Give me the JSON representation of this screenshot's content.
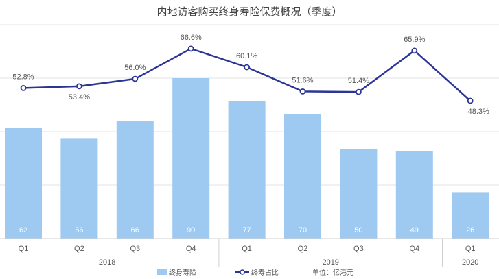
{
  "chart_data": {
    "type": "bar+line",
    "title": "内地访客购买终身寿险保费概况（季度）",
    "categories": [
      "Q1",
      "Q2",
      "Q3",
      "Q4",
      "Q1",
      "Q2",
      "Q3",
      "Q4",
      "Q1"
    ],
    "groups": [
      {
        "label": "2018",
        "span": 4
      },
      {
        "label": "2019",
        "span": 4
      },
      {
        "label": "2020",
        "span": 1
      }
    ],
    "series": [
      {
        "name": "终身寿险",
        "type": "bar",
        "color": "#9ec9f1",
        "values": [
          62,
          56,
          66,
          90,
          77,
          70,
          50,
          49,
          26
        ],
        "labels": [
          "62",
          "56",
          "66",
          "90",
          "77",
          "70",
          "50",
          "49",
          "26"
        ]
      },
      {
        "name": "终寿占比",
        "type": "line",
        "color": "#2b3594",
        "axis": "secondary",
        "values": [
          52.8,
          53.4,
          56.0,
          66.6,
          60.1,
          51.6,
          51.4,
          65.9,
          48.3
        ],
        "labels": [
          "52.8%",
          "53.4%",
          "56.0%",
          "66.6%",
          "60.1%",
          "51.6%",
          "51.4%",
          "65.9%",
          "48.3%"
        ]
      }
    ],
    "ylim": [
      0,
      120
    ],
    "y2lim": [
      0,
      75
    ],
    "grid": true,
    "legend_position": "bottom",
    "unit_note": "单位：亿港元"
  }
}
